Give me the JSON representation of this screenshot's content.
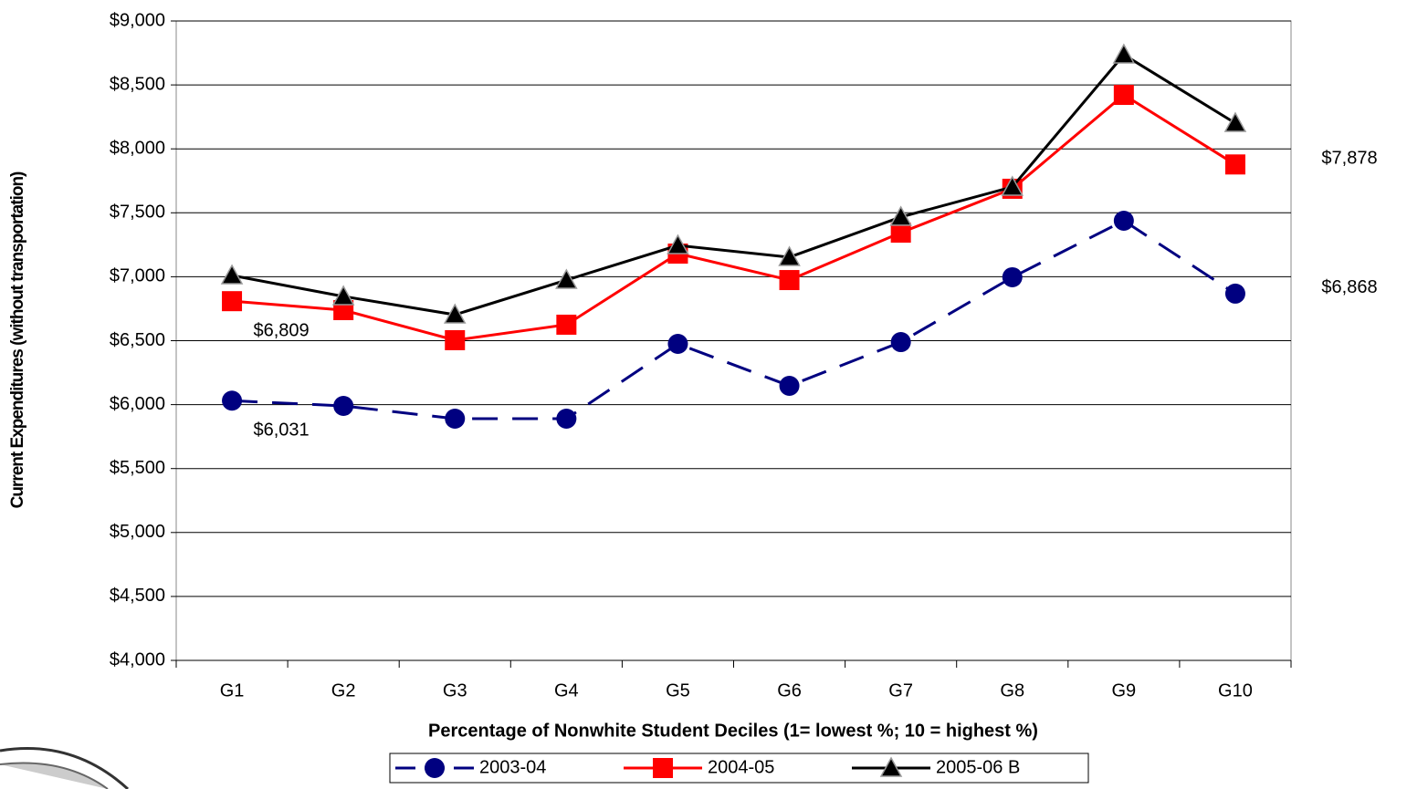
{
  "chart_data": {
    "type": "line",
    "x_label": "Percentage of Nonwhite Student Deciles (1= lowest %; 10 = highest %)",
    "y_label": "Current Expenditures (without transportation)",
    "categories": [
      "G1",
      "G2",
      "G3",
      "G4",
      "G5",
      "G6",
      "G7",
      "G8",
      "G9",
      "G10"
    ],
    "series": [
      {
        "name": "2003-04",
        "color": "#000080",
        "dashed": true,
        "marker": "circle",
        "values": [
          6031,
          5990,
          5890,
          5890,
          6475,
          6147,
          6489,
          6996,
          7438,
          6868
        ],
        "value_labels": [
          "$6,031",
          null,
          null,
          null,
          null,
          null,
          null,
          null,
          null,
          "$6,868"
        ]
      },
      {
        "name": "2004-05",
        "color": "#ff0000",
        "dashed": false,
        "marker": "square",
        "values": [
          6809,
          6739,
          6504,
          6625,
          7181,
          6974,
          7345,
          7688,
          8422,
          7878
        ],
        "value_labels": [
          "$6,809",
          null,
          null,
          null,
          null,
          null,
          null,
          null,
          null,
          "$7,878"
        ]
      },
      {
        "name": "2005-06 B",
        "color": "#000000",
        "dashed": false,
        "marker": "triangle",
        "values": [
          7010,
          6846,
          6703,
          6974,
          7245,
          7153,
          7467,
          7702,
          8736,
          8201
        ]
      }
    ],
    "ylim": [
      4000,
      9000
    ],
    "yticks": [
      {
        "value": 4000,
        "label": "$4,000"
      },
      {
        "value": 4500,
        "label": "$4,500"
      },
      {
        "value": 5000,
        "label": "$5,000"
      },
      {
        "value": 5500,
        "label": "$5,500"
      },
      {
        "value": 6000,
        "label": "$6,000"
      },
      {
        "value": 6500,
        "label": "$6,500"
      },
      {
        "value": 7000,
        "label": "$7,000"
      },
      {
        "value": 7500,
        "label": "$7,500"
      },
      {
        "value": 8000,
        "label": "$8,000"
      },
      {
        "value": 8500,
        "label": "$8,500"
      },
      {
        "value": 9000,
        "label": "$9,000"
      }
    ],
    "grid": true
  }
}
